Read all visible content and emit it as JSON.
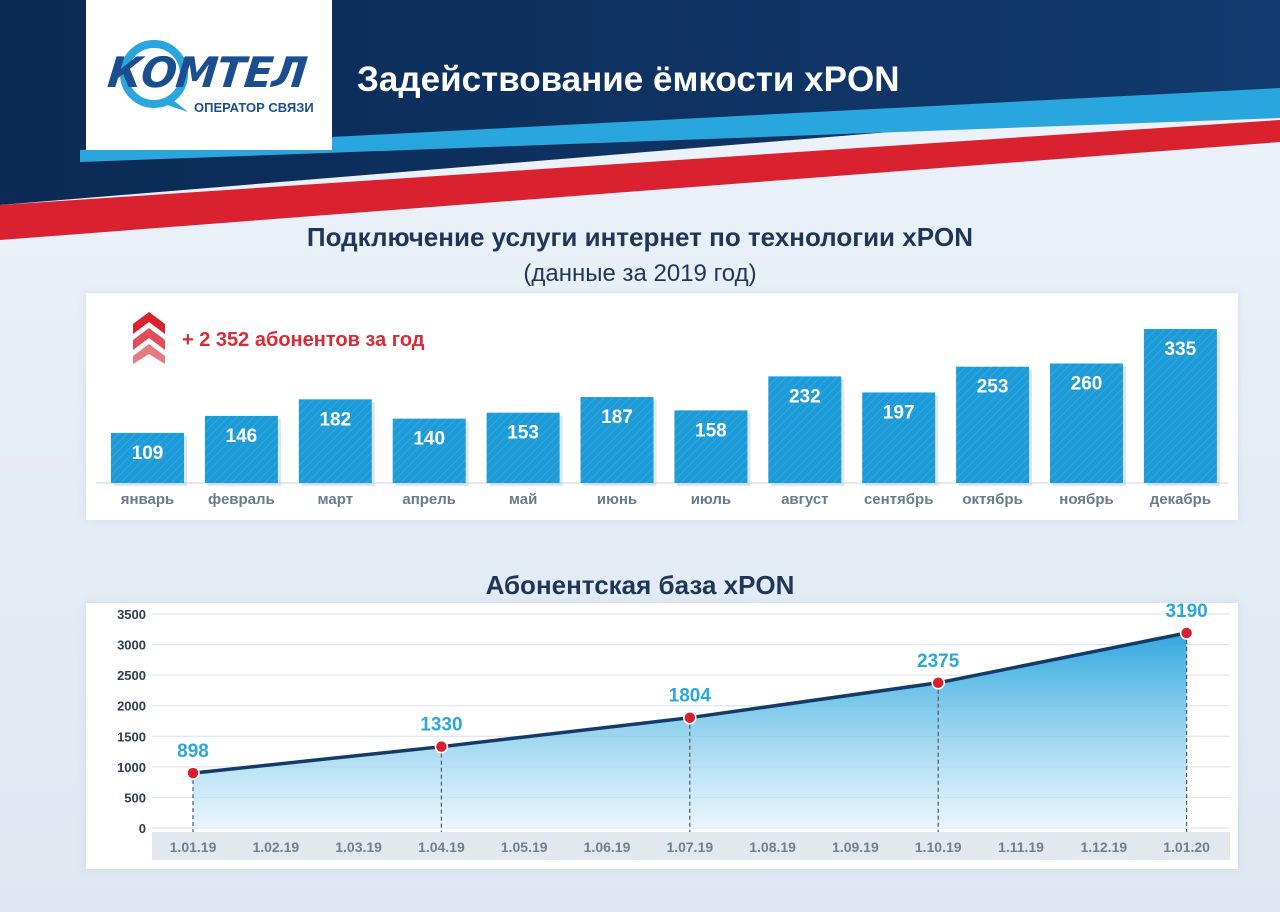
{
  "header": {
    "title": "Задействование ёмкости xPON",
    "logo_text": "КОМТЕЛ",
    "logo_subtitle": "ОПЕРАТОР СВЯЗИ"
  },
  "colors": {
    "navy": "#0d2d5a",
    "accent_blue": "#2aa6de",
    "accent_red": "#d9212f",
    "bar_blue": "#1e9ad6",
    "line_dark": "#143a66",
    "point_red": "#d62030",
    "label_teal": "#2aa8da"
  },
  "chart_data": [
    {
      "type": "bar",
      "title": "Подключение услуги интернет по технологии xPON",
      "subtitle": "(данные за 2019 год)",
      "annotation": "+ 2 352 абонентов за год",
      "categories": [
        "январь",
        "февраль",
        "март",
        "апрель",
        "май",
        "июнь",
        "июль",
        "август",
        "сентябрь",
        "октябрь",
        "ноябрь",
        "декабрь"
      ],
      "values": [
        109,
        146,
        182,
        140,
        153,
        187,
        158,
        232,
        197,
        253,
        260,
        335
      ],
      "ylim": [
        0,
        335
      ],
      "xlabel": "",
      "ylabel": ""
    },
    {
      "type": "area",
      "title": "Абонентская база xPON",
      "x": [
        "1.01.19",
        "1.02.19",
        "1.03.19",
        "1.04.19",
        "1.05.19",
        "1.06.19",
        "1.07.19",
        "1.08.19",
        "1.09.19",
        "1.10.19",
        "1.11.19",
        "1.12.19",
        "1.01.20"
      ],
      "yticks": [
        0,
        500,
        1000,
        1500,
        2000,
        2500,
        3000,
        3500
      ],
      "ylim": [
        0,
        3500
      ],
      "points": [
        {
          "x": "1.01.19",
          "y": 898
        },
        {
          "x": "1.04.19",
          "y": 1330
        },
        {
          "x": "1.07.19",
          "y": 1804
        },
        {
          "x": "1.10.19",
          "y": 2375
        },
        {
          "x": "1.01.20",
          "y": 3190
        }
      ],
      "grid": true,
      "xlabel": "",
      "ylabel": ""
    }
  ]
}
